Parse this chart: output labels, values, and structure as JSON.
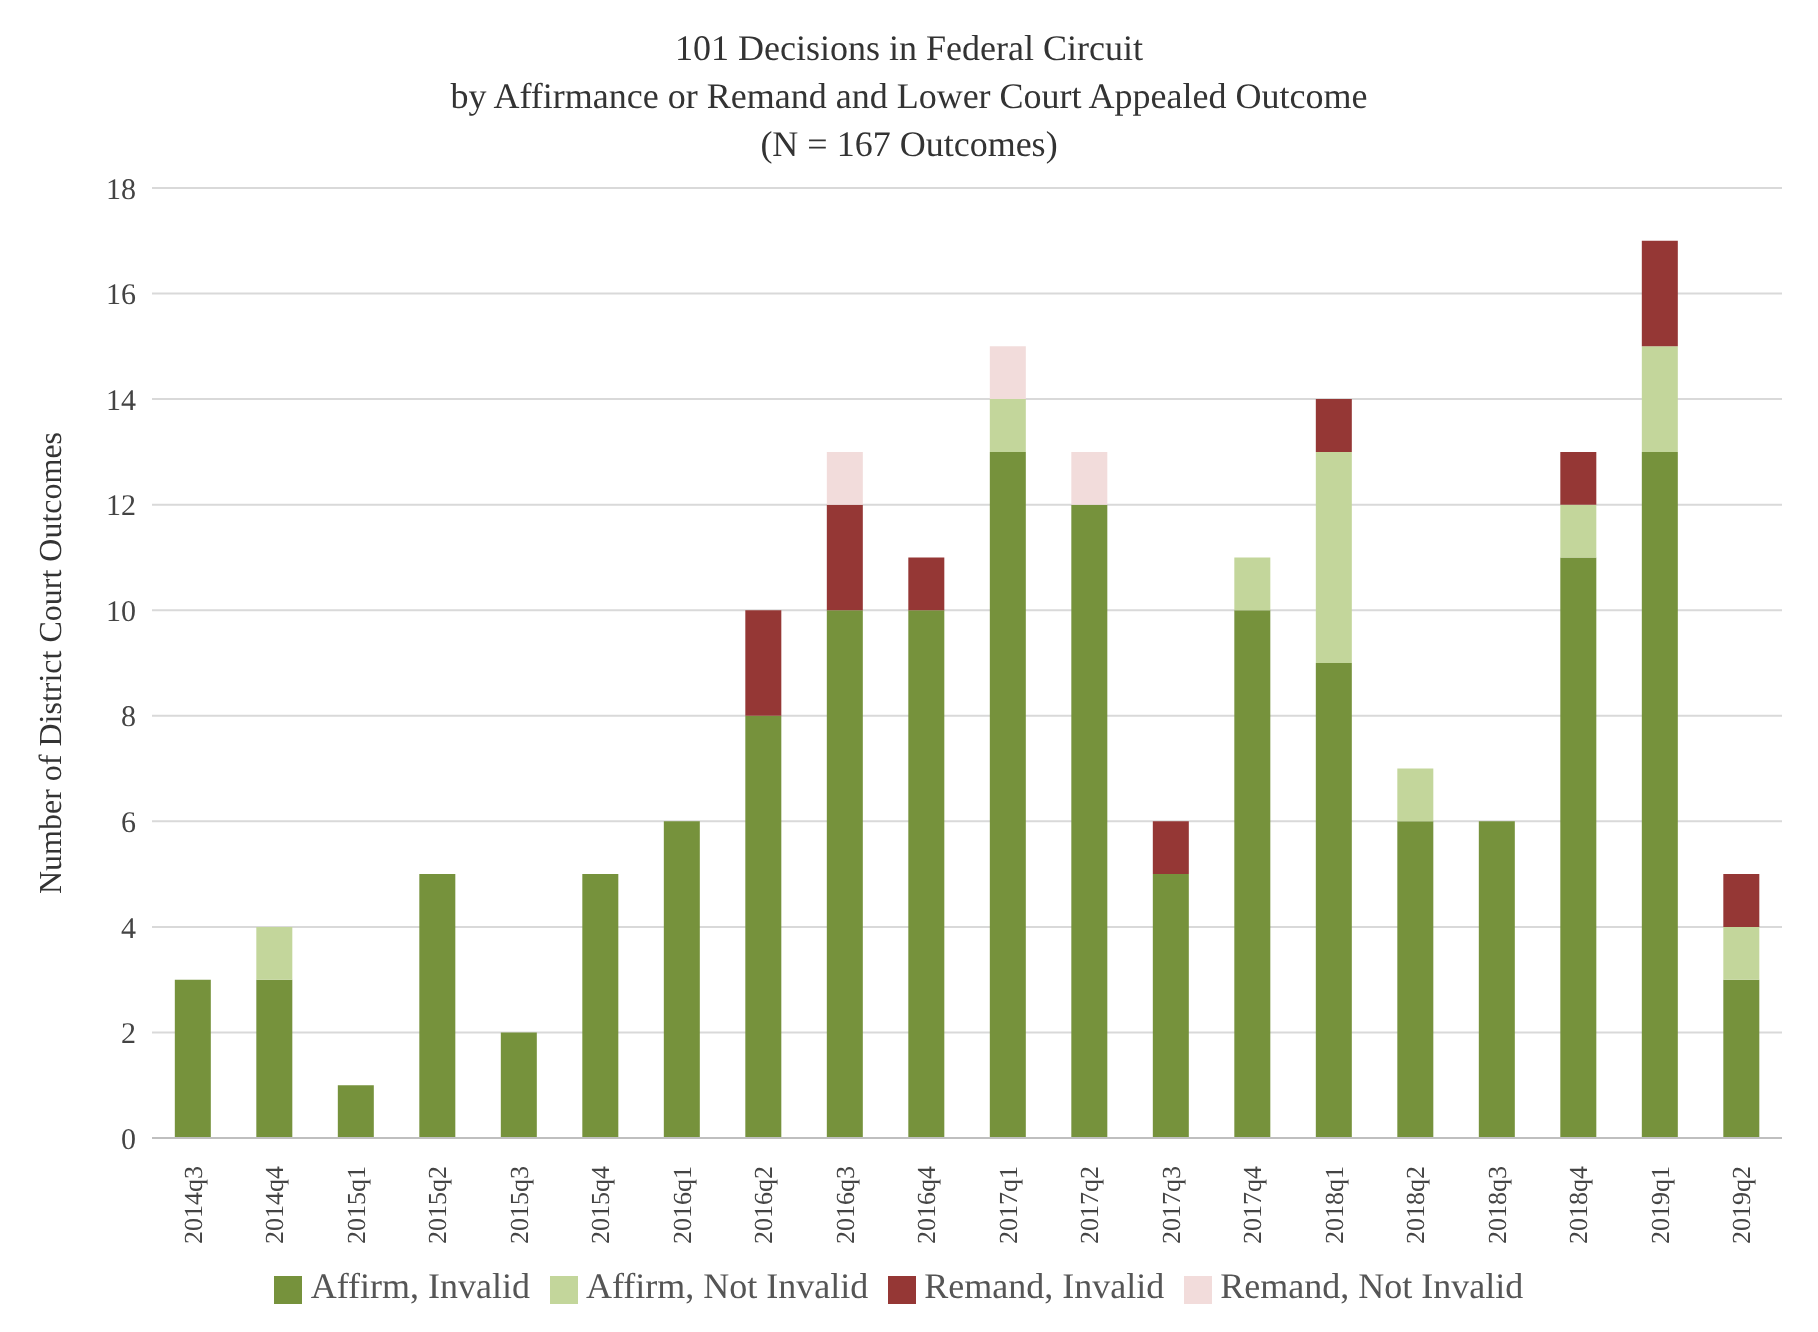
{
  "chart_data": {
    "type": "bar",
    "title": "101 Decisions in Federal Circuit\nby Affirmance or Remand and Lower Court Appealed Outcome",
    "subtitle": "(N = 167 Outcomes)",
    "ylabel": "Number of District Court Outcomes",
    "categories": [
      "2014q3",
      "2014q4",
      "2015q1",
      "2015q2",
      "2015q3",
      "2015q4",
      "2016q1",
      "2016q2",
      "2016q3",
      "2016q4",
      "2017q1",
      "2017q2",
      "2017q3",
      "2017q4",
      "2018q1",
      "2018q2",
      "2018q3",
      "2018q4",
      "2019q1",
      "2019q2"
    ],
    "series": [
      {
        "name": "Affirm, Invalid",
        "color": "#76923c",
        "values": [
          3,
          3,
          1,
          5,
          2,
          5,
          6,
          8,
          10,
          10,
          13,
          12,
          5,
          10,
          9,
          6,
          6,
          11,
          13,
          3
        ]
      },
      {
        "name": "Affirm, Not Invalid",
        "color": "#c3d69b",
        "values": [
          0,
          1,
          0,
          0,
          0,
          0,
          0,
          0,
          0,
          0,
          1,
          0,
          0,
          1,
          4,
          1,
          0,
          1,
          2,
          1
        ]
      },
      {
        "name": "Remand, Invalid",
        "color": "#953735",
        "values": [
          0,
          0,
          0,
          0,
          0,
          0,
          0,
          2,
          2,
          1,
          0,
          0,
          1,
          0,
          1,
          0,
          0,
          1,
          2,
          1
        ]
      },
      {
        "name": "Remand, Not Invalid",
        "color": "#f2dcdb",
        "values": [
          0,
          0,
          0,
          0,
          0,
          0,
          0,
          0,
          1,
          0,
          1,
          1,
          0,
          0,
          0,
          0,
          0,
          0,
          0,
          0
        ]
      }
    ],
    "stacked": true,
    "ylim": [
      0,
      18
    ],
    "yticks": [
      0,
      2,
      4,
      6,
      8,
      10,
      12,
      14,
      16,
      18
    ],
    "grid": "y",
    "legend": "bottom"
  }
}
